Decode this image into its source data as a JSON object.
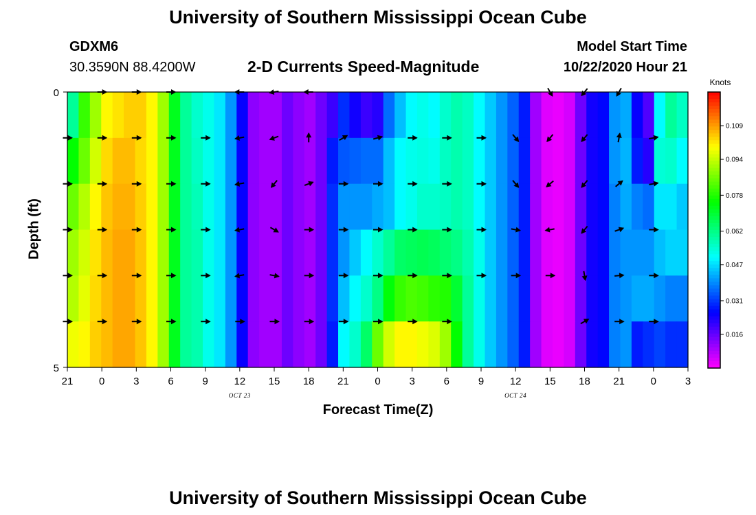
{
  "page": {
    "title_top": "University of Southern Mississippi Ocean Cube",
    "title_bottom": "University of Southern Mississippi Ocean Cube",
    "station_id": "GDXM6",
    "station_coords": "30.3590N 88.4200W",
    "chart_heading": "2-D Currents Speed-Magnitude",
    "model_start_label": "Model Start Time",
    "model_start_value": "10/22/2020 Hour 21",
    "units_label": "Knots"
  },
  "chart_data": {
    "type": "heatmap",
    "title": "2-D Currents Speed-Magnitude",
    "xlabel": "Forecast Time(Z)",
    "ylabel": "Depth (ft)",
    "x_tick_labels": [
      "21",
      "0",
      "3",
      "6",
      "9",
      "12",
      "15",
      "18",
      "21",
      "0",
      "3",
      "6",
      "9",
      "12",
      "15",
      "18",
      "21",
      "0",
      "3"
    ],
    "x_sublabels": [
      {
        "tick_index": 5,
        "text": "OCT 23"
      },
      {
        "tick_index": 13,
        "text": "OCT 24"
      }
    ],
    "y_tick_labels": [
      "0",
      "5"
    ],
    "ylim": [
      0,
      5
    ],
    "colorbar": {
      "label": "Knots",
      "tick_labels": [
        "0.109",
        "0.094",
        "0.078",
        "0.062",
        "0.047",
        "0.031",
        "0.016"
      ],
      "tick_values": [
        0.109,
        0.094,
        0.078,
        0.062,
        0.047,
        0.031,
        0.016
      ],
      "range": [
        0.001,
        0.124
      ]
    },
    "time_hours_from_start": [
      0,
      1,
      2,
      3,
      4,
      5,
      6,
      7,
      8,
      9,
      10,
      11,
      12,
      13,
      14,
      15,
      16,
      17,
      18,
      19,
      20,
      21,
      22,
      23,
      24,
      25,
      26,
      27,
      28,
      29,
      30,
      31,
      32,
      33,
      34,
      35,
      36,
      37,
      38,
      39,
      40,
      41,
      42,
      43,
      44,
      45,
      46,
      47,
      48,
      49,
      50,
      51,
      52,
      53,
      54
    ],
    "speed_by_depth_layer": [
      [
        0.06,
        0.08,
        0.09,
        0.1,
        0.102,
        0.104,
        0.104,
        0.1,
        0.09,
        0.072,
        0.06,
        0.055,
        0.052,
        0.048,
        0.04,
        0.025,
        0.012,
        0.01,
        0.01,
        0.015,
        0.012,
        0.01,
        0.015,
        0.02,
        0.03,
        0.024,
        0.02,
        0.022,
        0.036,
        0.044,
        0.05,
        0.052,
        0.05,
        0.055,
        0.058,
        0.056,
        0.05,
        0.045,
        0.04,
        0.035,
        0.028,
        0.01,
        0.004,
        0.003,
        0.005,
        0.015,
        0.024,
        0.026,
        0.04,
        0.042,
        0.025,
        0.018,
        0.05,
        0.06,
        0.056
      ],
      [
        0.075,
        0.085,
        0.095,
        0.103,
        0.106,
        0.106,
        0.103,
        0.1,
        0.09,
        0.072,
        0.06,
        0.056,
        0.052,
        0.048,
        0.04,
        0.025,
        0.012,
        0.01,
        0.01,
        0.015,
        0.012,
        0.01,
        0.015,
        0.028,
        0.034,
        0.035,
        0.036,
        0.036,
        0.044,
        0.05,
        0.052,
        0.053,
        0.052,
        0.056,
        0.058,
        0.056,
        0.05,
        0.045,
        0.04,
        0.035,
        0.028,
        0.01,
        0.004,
        0.003,
        0.005,
        0.015,
        0.024,
        0.026,
        0.04,
        0.043,
        0.028,
        0.022,
        0.054,
        0.055,
        0.05
      ],
      [
        0.085,
        0.092,
        0.1,
        0.105,
        0.107,
        0.107,
        0.104,
        0.1,
        0.09,
        0.072,
        0.06,
        0.057,
        0.052,
        0.048,
        0.04,
        0.025,
        0.012,
        0.01,
        0.01,
        0.015,
        0.012,
        0.01,
        0.015,
        0.03,
        0.04,
        0.04,
        0.04,
        0.042,
        0.044,
        0.05,
        0.052,
        0.055,
        0.055,
        0.056,
        0.058,
        0.056,
        0.05,
        0.045,
        0.04,
        0.035,
        0.028,
        0.01,
        0.004,
        0.003,
        0.005,
        0.015,
        0.024,
        0.026,
        0.038,
        0.042,
        0.038,
        0.036,
        0.048,
        0.048,
        0.045
      ],
      [
        0.09,
        0.095,
        0.102,
        0.106,
        0.108,
        0.108,
        0.105,
        0.1,
        0.09,
        0.072,
        0.06,
        0.058,
        0.052,
        0.048,
        0.04,
        0.025,
        0.012,
        0.01,
        0.01,
        0.015,
        0.012,
        0.01,
        0.015,
        0.03,
        0.04,
        0.045,
        0.05,
        0.055,
        0.06,
        0.065,
        0.066,
        0.067,
        0.066,
        0.064,
        0.062,
        0.058,
        0.052,
        0.045,
        0.04,
        0.035,
        0.028,
        0.01,
        0.004,
        0.003,
        0.005,
        0.015,
        0.024,
        0.026,
        0.038,
        0.04,
        0.04,
        0.04,
        0.044,
        0.046,
        0.046
      ],
      [
        0.092,
        0.097,
        0.103,
        0.106,
        0.108,
        0.108,
        0.105,
        0.1,
        0.09,
        0.072,
        0.06,
        0.058,
        0.052,
        0.048,
        0.04,
        0.025,
        0.012,
        0.01,
        0.01,
        0.015,
        0.012,
        0.01,
        0.015,
        0.03,
        0.044,
        0.05,
        0.055,
        0.062,
        0.074,
        0.08,
        0.082,
        0.081,
        0.079,
        0.078,
        0.07,
        0.06,
        0.052,
        0.045,
        0.04,
        0.035,
        0.028,
        0.01,
        0.004,
        0.003,
        0.005,
        0.015,
        0.024,
        0.026,
        0.038,
        0.04,
        0.042,
        0.042,
        0.04,
        0.038,
        0.038
      ],
      [
        0.098,
        0.1,
        0.104,
        0.106,
        0.108,
        0.108,
        0.105,
        0.1,
        0.09,
        0.072,
        0.06,
        0.058,
        0.052,
        0.048,
        0.04,
        0.025,
        0.012,
        0.01,
        0.01,
        0.015,
        0.012,
        0.01,
        0.015,
        0.028,
        0.05,
        0.055,
        0.065,
        0.085,
        0.095,
        0.1,
        0.1,
        0.098,
        0.096,
        0.09,
        0.075,
        0.06,
        0.052,
        0.045,
        0.04,
        0.035,
        0.028,
        0.01,
        0.004,
        0.003,
        0.005,
        0.015,
        0.024,
        0.026,
        0.038,
        0.04,
        0.028,
        0.03,
        0.032,
        0.03,
        0.03
      ]
    ],
    "vector_rows_depth_index": [
      0,
      1,
      2,
      3,
      4,
      5
    ],
    "vector_time_hours": [
      0,
      3,
      6,
      9,
      12,
      15,
      18,
      21,
      24,
      27,
      30,
      33,
      36,
      39,
      42,
      45,
      48,
      51,
      54
    ],
    "vector_direction_deg": [
      [
        null,
        90,
        90,
        90,
        null,
        270,
        260,
        270,
        null,
        null,
        null,
        null,
        null,
        null,
        150,
        220,
        210,
        null,
        null
      ],
      [
        90,
        90,
        90,
        90,
        90,
        260,
        250,
        0,
        60,
        75,
        90,
        90,
        90,
        140,
        220,
        220,
        10,
        80,
        null
      ],
      [
        90,
        90,
        90,
        90,
        90,
        260,
        220,
        70,
        90,
        90,
        90,
        90,
        90,
        140,
        230,
        220,
        50,
        80,
        null
      ],
      [
        90,
        90,
        90,
        90,
        90,
        260,
        120,
        90,
        90,
        90,
        90,
        90,
        90,
        100,
        260,
        220,
        70,
        90,
        null
      ],
      [
        90,
        90,
        90,
        90,
        90,
        260,
        100,
        90,
        90,
        90,
        90,
        90,
        90,
        90,
        90,
        170,
        85,
        90,
        null
      ],
      [
        90,
        90,
        90,
        90,
        90,
        90,
        90,
        90,
        90,
        90,
        90,
        90,
        null,
        null,
        null,
        60,
        90,
        90,
        null
      ]
    ]
  }
}
